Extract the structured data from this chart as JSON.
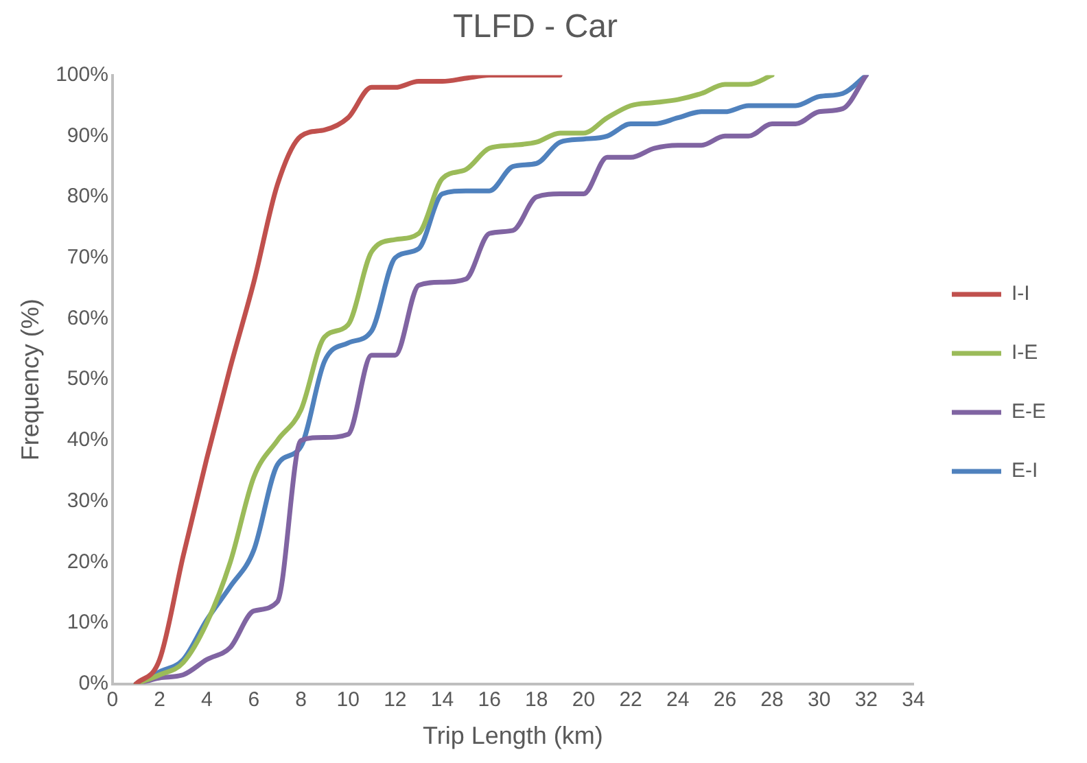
{
  "chart_data": {
    "type": "line",
    "title": "TLFD - Car",
    "xlabel": "Trip Length (km)",
    "ylabel": "Frequency (%)",
    "xlim": [
      0,
      34
    ],
    "xticks": [
      0,
      2,
      4,
      6,
      8,
      10,
      12,
      14,
      16,
      18,
      20,
      22,
      24,
      26,
      28,
      30,
      32,
      34
    ],
    "ylim": [
      0,
      100
    ],
    "yticks": [
      {
        "value": 0,
        "label": "0%"
      },
      {
        "value": 10,
        "label": "10%"
      },
      {
        "value": 20,
        "label": "20%"
      },
      {
        "value": 30,
        "label": "30%"
      },
      {
        "value": 40,
        "label": "40%"
      },
      {
        "value": 50,
        "label": "50%"
      },
      {
        "value": 60,
        "label": "60%"
      },
      {
        "value": 70,
        "label": "70%"
      },
      {
        "value": 80,
        "label": "80%"
      },
      {
        "value": 90,
        "label": "90%"
      },
      {
        "value": 100,
        "label": "100%"
      }
    ],
    "grid": false,
    "legend": "right",
    "marker": "none",
    "line_style": "solid",
    "series": [
      {
        "name": "I-I",
        "color": "#c0504d",
        "x": [
          1,
          2,
          3,
          4,
          5,
          6,
          7,
          8,
          9,
          10,
          11,
          12,
          13,
          14,
          15,
          16,
          17,
          18,
          19
        ],
        "values": [
          0,
          4,
          21,
          37,
          52,
          66,
          82,
          90,
          91,
          93,
          98,
          98,
          99,
          99,
          99.5,
          100,
          100,
          100,
          100
        ]
      },
      {
        "name": "I-E",
        "color": "#9bbb59",
        "x": [
          1,
          2,
          3,
          4,
          5,
          6,
          7,
          8,
          9,
          10,
          11,
          12,
          13,
          14,
          15,
          16,
          17,
          18,
          19,
          20,
          21,
          22,
          23,
          24,
          25,
          26,
          27,
          28
        ],
        "values": [
          0,
          1.5,
          3.5,
          10,
          20,
          34,
          40,
          45,
          57,
          59,
          71,
          73,
          74,
          83,
          84.5,
          88,
          88.5,
          89,
          90.5,
          90.5,
          93,
          95,
          95.5,
          96,
          97,
          98.5,
          98.5,
          100
        ]
      },
      {
        "name": "E-E",
        "color": "#8064a2",
        "x": [
          1,
          2,
          3,
          4,
          5,
          6,
          7,
          8,
          9,
          10,
          11,
          12,
          13,
          14,
          15,
          16,
          17,
          18,
          19,
          20,
          21,
          22,
          23,
          24,
          25,
          26,
          27,
          28,
          29,
          30,
          31,
          32
        ],
        "values": [
          0,
          1,
          1.5,
          4,
          6,
          12,
          13.5,
          40,
          40.5,
          41,
          54,
          54,
          65.5,
          66,
          66.5,
          74,
          74.5,
          80,
          80.5,
          80.5,
          86.5,
          86.5,
          88,
          88.5,
          88.5,
          90,
          90,
          92,
          92,
          94,
          94.5,
          100
        ]
      },
      {
        "name": "E-I",
        "color": "#4f81bd",
        "x": [
          1,
          2,
          3,
          4,
          5,
          6,
          7,
          8,
          9,
          10,
          11,
          12,
          13,
          14,
          15,
          16,
          17,
          18,
          19,
          20,
          21,
          22,
          23,
          24,
          25,
          26,
          27,
          28,
          29,
          30,
          31,
          32
        ],
        "values": [
          0,
          2,
          4,
          10.5,
          16,
          22,
          36,
          39,
          53,
          56,
          58,
          70,
          71.5,
          80.5,
          81,
          81,
          85,
          85.5,
          89,
          89.5,
          90,
          92,
          92,
          93,
          94,
          94,
          95,
          95,
          95,
          96.5,
          97,
          100
        ]
      }
    ]
  }
}
